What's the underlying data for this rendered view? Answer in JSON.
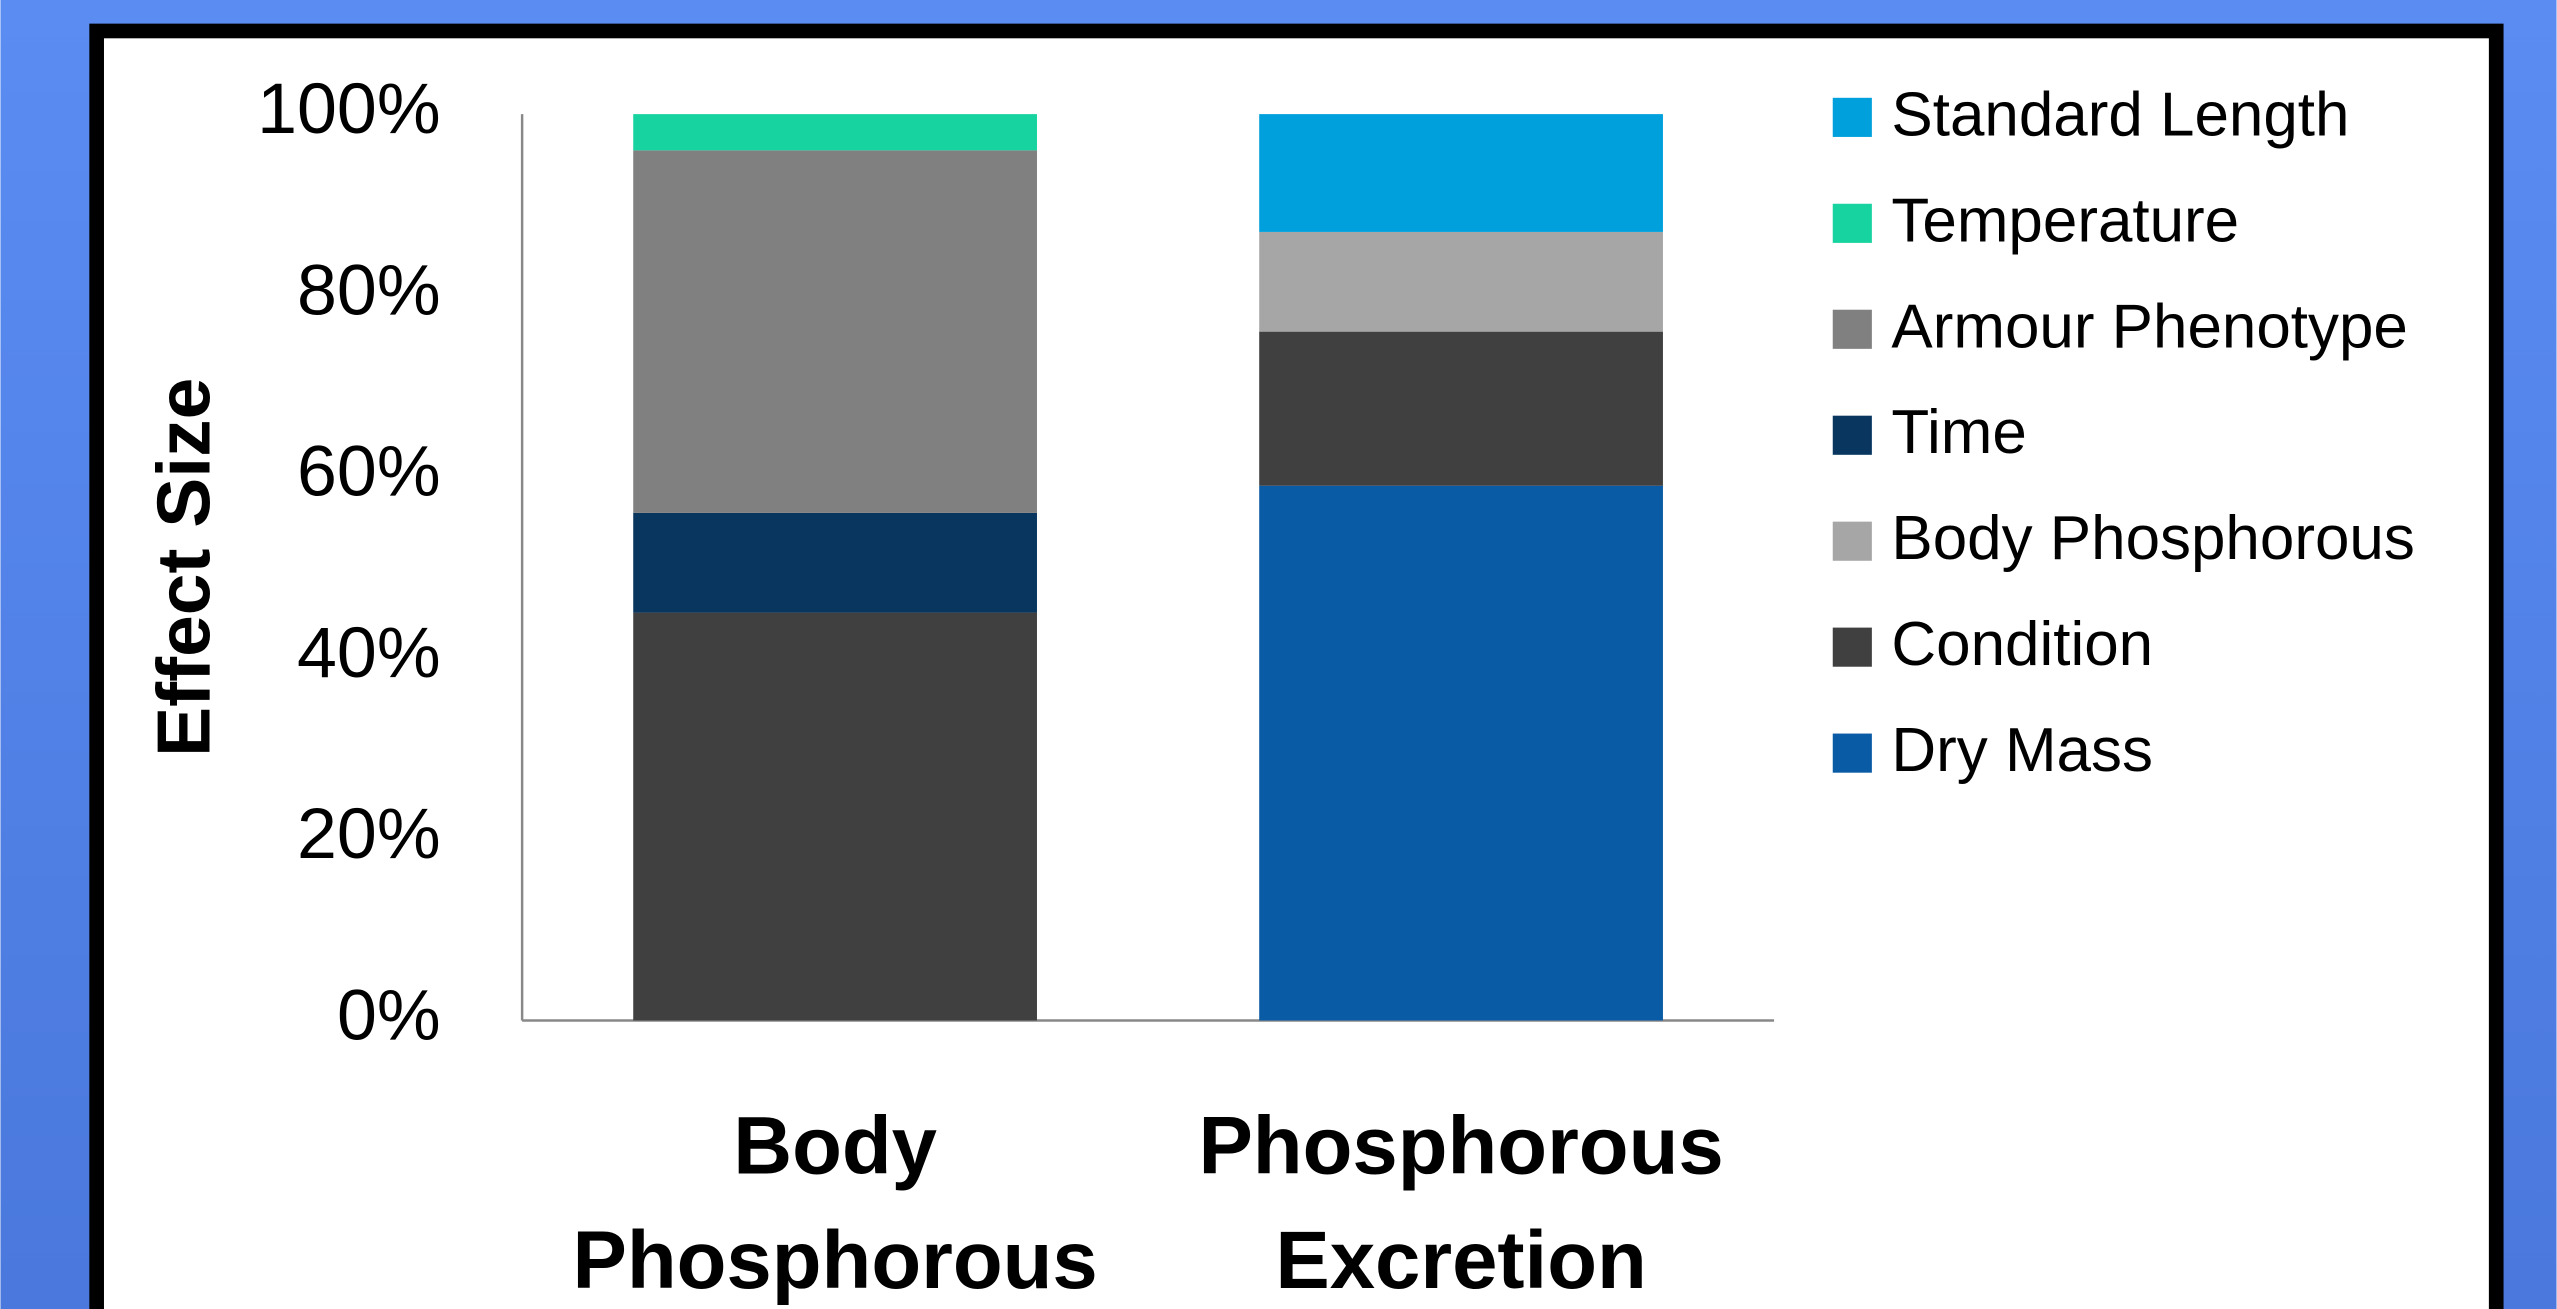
{
  "chart_data": {
    "type": "stacked_bar",
    "ylabel": "Effect Size",
    "categories": [
      "Body Phosphorous",
      "Phosphorous Excretion"
    ],
    "series": [
      {
        "name": "Dry Mass",
        "color": "#0a5ba5",
        "values": [
          0,
          59
        ]
      },
      {
        "name": "Condition",
        "color": "#404040",
        "values": [
          45,
          17
        ]
      },
      {
        "name": "Body Phosphorous",
        "color": "#a6a6a6",
        "values": [
          0,
          11
        ]
      },
      {
        "name": "Time",
        "color": "#08365f",
        "values": [
          11,
          0
        ]
      },
      {
        "name": "Armour Phenotype",
        "color": "#808080",
        "values": [
          40,
          0
        ]
      },
      {
        "name": "Temperature",
        "color": "#17d3a0",
        "values": [
          4,
          0
        ]
      },
      {
        "name": "Standard Length",
        "color": "#00a0dc",
        "values": [
          0,
          13
        ]
      }
    ],
    "ylim": [
      0,
      100
    ],
    "yticks": [
      {
        "value": 0,
        "label": "0%"
      },
      {
        "value": 20,
        "label": "20%"
      },
      {
        "value": 40,
        "label": "40%"
      },
      {
        "value": 60,
        "label": "60%"
      },
      {
        "value": 80,
        "label": "80%"
      },
      {
        "value": 100,
        "label": "100%"
      }
    ],
    "grid": false,
    "legend": "right"
  }
}
